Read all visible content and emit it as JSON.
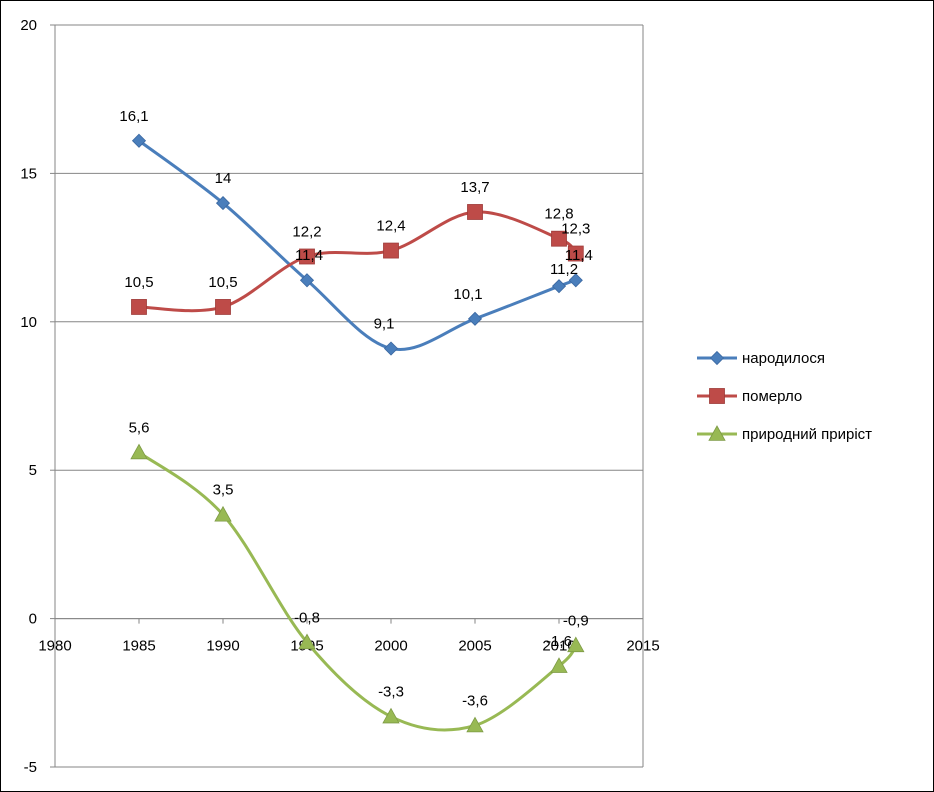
{
  "chart_data": {
    "type": "line",
    "smooth": true,
    "title": "",
    "xlabel": "",
    "ylabel": "",
    "xlim": [
      1980,
      2015
    ],
    "ylim": [
      -5,
      20
    ],
    "x_ticks": [
      "1980",
      "1985",
      "1990",
      "1995",
      "2000",
      "2005",
      "2010",
      "2015"
    ],
    "y_ticks": [
      "-5",
      "0",
      "5",
      "10",
      "15",
      "20"
    ],
    "x_tick_values": [
      1980,
      1985,
      1990,
      1995,
      2000,
      2005,
      2010,
      2015
    ],
    "y_tick_values": [
      -5,
      0,
      5,
      10,
      15,
      20
    ],
    "grid": "horizontal",
    "legend_position": "right",
    "series": [
      {
        "name": "народилося",
        "color": "#4a7ebb",
        "marker": "diamond",
        "x": [
          1985,
          1990,
          1995,
          2000,
          2005,
          2010,
          2011
        ],
        "y": [
          16.1,
          14,
          11.4,
          9.1,
          10.1,
          11.2,
          11.4
        ],
        "labels": [
          "16,1",
          "14",
          "11,4",
          "9,1",
          "10,1",
          "11,2",
          "11,4"
        ]
      },
      {
        "name": "померло",
        "color": "#be4b48",
        "marker": "square",
        "x": [
          1985,
          1990,
          1995,
          2000,
          2005,
          2010,
          2011
        ],
        "y": [
          10.5,
          10.5,
          12.2,
          12.4,
          13.7,
          12.8,
          12.3
        ],
        "labels": [
          "10,5",
          "10,5",
          "12,2",
          "12,4",
          "13,7",
          "12,8",
          "12,3"
        ]
      },
      {
        "name": "природний приріст",
        "color": "#98b954",
        "marker": "triangle",
        "x": [
          1985,
          1990,
          1995,
          2000,
          2005,
          2010,
          2011
        ],
        "y": [
          5.6,
          3.5,
          -0.8,
          -3.3,
          -3.6,
          -1.6,
          -0.9
        ],
        "labels": [
          "5,6",
          "3,5",
          "-0,8",
          "-3,3",
          "-3,6",
          "-1,6",
          "-0,9"
        ]
      }
    ]
  }
}
